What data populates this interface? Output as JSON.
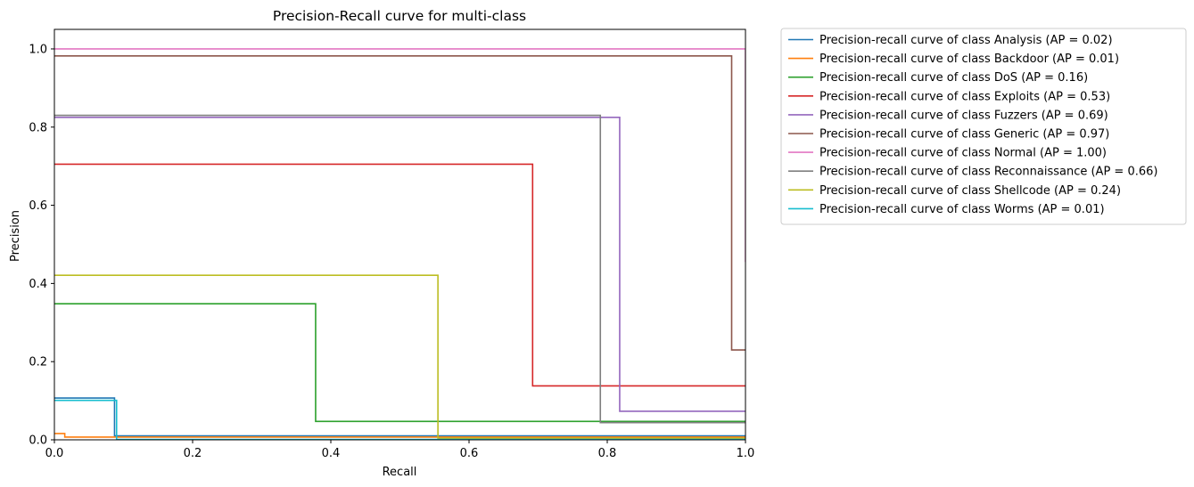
{
  "chart_data": {
    "type": "line",
    "title": "Precision-Recall curve for multi-class",
    "xlabel": "Recall",
    "ylabel": "Precision",
    "xlim": [
      0.0,
      1.0
    ],
    "ylim": [
      0.0,
      1.05
    ],
    "xticks": [
      "0.0",
      "0.2",
      "0.4",
      "0.6",
      "0.8",
      "1.0"
    ],
    "yticks": [
      "0.0",
      "0.2",
      "0.4",
      "0.6",
      "0.8",
      "1.0"
    ],
    "grid": false,
    "legend_position": "outside-right-top",
    "series": [
      {
        "name": "Precision-recall curve of class Analysis (AP = 0.02)",
        "color": "#1f77b4",
        "points": [
          [
            0,
            0.107
          ],
          [
            0.087,
            0.107
          ],
          [
            0.087,
            0.01
          ],
          [
            1.0,
            0.01
          ]
        ]
      },
      {
        "name": "Precision-recall curve of class Backdoor (AP = 0.01)",
        "color": "#ff7f0e",
        "points": [
          [
            0,
            0.016
          ],
          [
            0.015,
            0.016
          ],
          [
            0.015,
            0.007
          ],
          [
            1.0,
            0.007
          ]
        ]
      },
      {
        "name": "Precision-recall curve of class DoS (AP = 0.16)",
        "color": "#2ca02c",
        "points": [
          [
            0,
            0.348
          ],
          [
            0.378,
            0.348
          ],
          [
            0.378,
            0.047
          ],
          [
            1.0,
            0.047
          ]
        ]
      },
      {
        "name": "Precision-recall curve of class Exploits (AP = 0.53)",
        "color": "#d62728",
        "points": [
          [
            0,
            0.705
          ],
          [
            0.692,
            0.705
          ],
          [
            0.692,
            0.138
          ],
          [
            1.0,
            0.138
          ]
        ]
      },
      {
        "name": "Precision-recall curve of class Fuzzers (AP = 0.69)",
        "color": "#9467bd",
        "points": [
          [
            0,
            0.825
          ],
          [
            0.818,
            0.825
          ],
          [
            0.818,
            0.073
          ],
          [
            1.0,
            0.073
          ]
        ]
      },
      {
        "name": "Precision-recall curve of class Generic (AP = 0.97)",
        "color": "#8c564b",
        "points": [
          [
            0,
            0.982
          ],
          [
            0.98,
            0.982
          ],
          [
            0.98,
            0.23
          ],
          [
            1.0,
            0.23
          ]
        ]
      },
      {
        "name": "Precision-recall curve of class Normal (AP = 1.00)",
        "color": "#e377c2",
        "points": [
          [
            0,
            1.0
          ],
          [
            1.0,
            1.0
          ],
          [
            1.0,
            0.455
          ]
        ]
      },
      {
        "name": "Precision-recall curve of class Reconnaissance (AP = 0.66)",
        "color": "#7f7f7f",
        "points": [
          [
            0,
            0.83
          ],
          [
            0.79,
            0.83
          ],
          [
            0.79,
            0.044
          ],
          [
            1.0,
            0.044
          ]
        ]
      },
      {
        "name": "Precision-recall curve of class Shellcode (AP = 0.24)",
        "color": "#bcbd22",
        "points": [
          [
            0,
            0.421
          ],
          [
            0.555,
            0.421
          ],
          [
            0.555,
            0.004
          ],
          [
            1.0,
            0.004
          ]
        ]
      },
      {
        "name": "Precision-recall curve of class Worms (AP = 0.01)",
        "color": "#17becf",
        "points": [
          [
            0,
            0.101
          ],
          [
            0.09,
            0.101
          ],
          [
            0.09,
            0.001
          ],
          [
            1.0,
            0.001
          ]
        ]
      }
    ]
  }
}
